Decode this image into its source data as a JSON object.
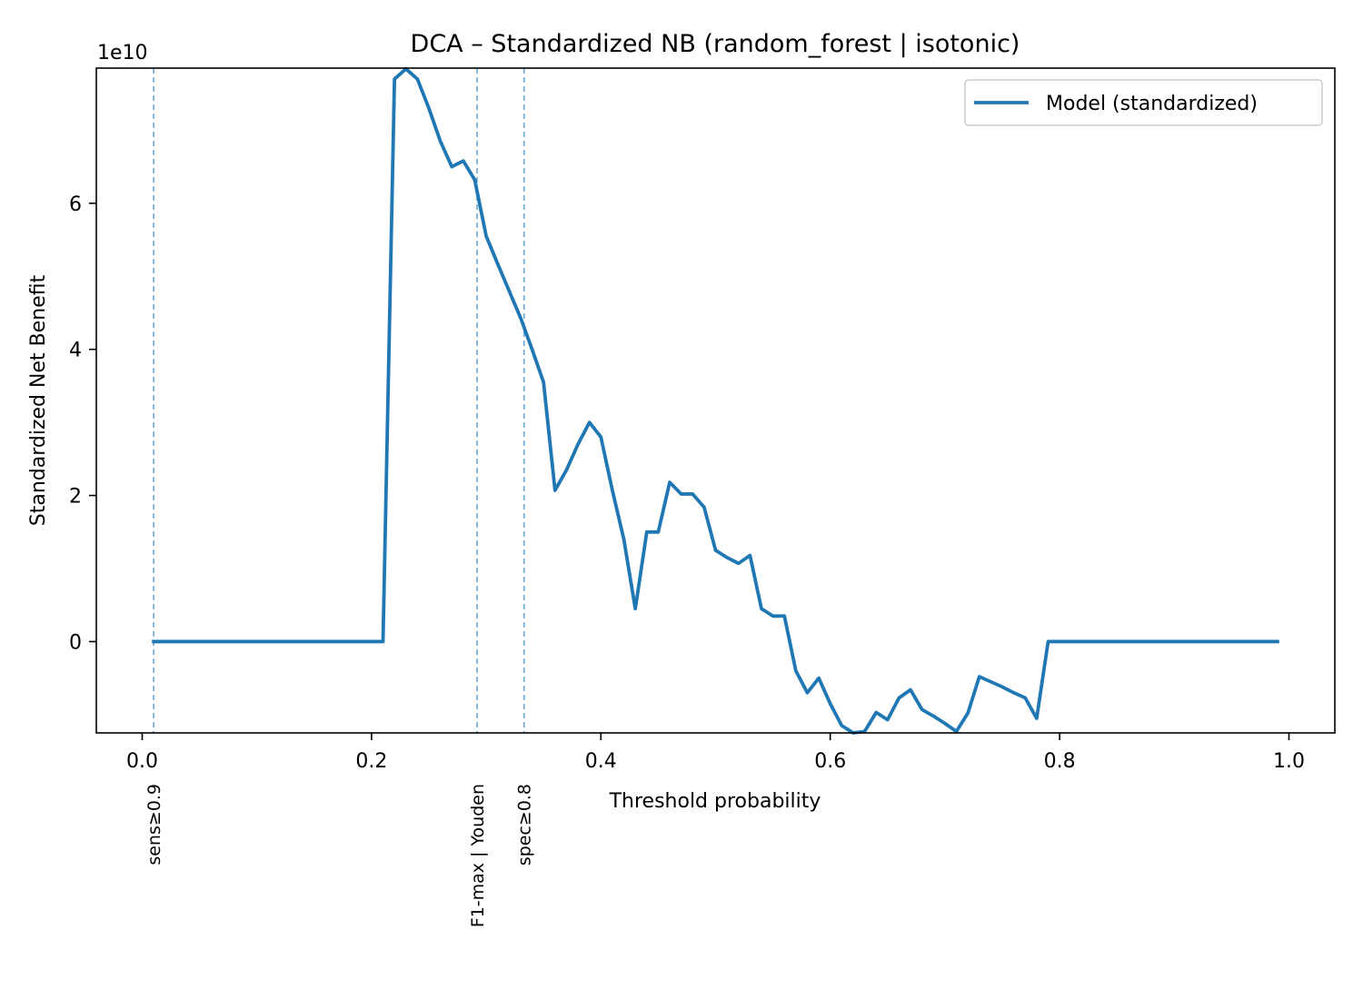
{
  "chart_data": {
    "type": "line",
    "title": "DCA – Standardized NB (random_forest | isotonic)",
    "xlabel": "Threshold probability",
    "ylabel": "Standardized Net Benefit",
    "y_offset_label": "1e10",
    "y_scale": 10000000000,
    "xlim": [
      -0.04,
      1.04
    ],
    "ylim": [
      -1.25,
      7.85
    ],
    "x_ticks": [
      0.0,
      0.2,
      0.4,
      0.6,
      0.8,
      1.0
    ],
    "x_tick_labels": [
      "0.0",
      "0.2",
      "0.4",
      "0.6",
      "0.8",
      "1.0"
    ],
    "y_ticks": [
      0,
      2,
      4,
      6
    ],
    "y_tick_labels": [
      "0",
      "2",
      "4",
      "6"
    ],
    "grid": false,
    "legend": "upper-right",
    "series": [
      {
        "name": "Model (standardized)",
        "color": "#1f77b4",
        "x": [
          0.01,
          0.21,
          0.22,
          0.23,
          0.24,
          0.25,
          0.26,
          0.27,
          0.28,
          0.29,
          0.3,
          0.31,
          0.32,
          0.33,
          0.34,
          0.35,
          0.36,
          0.37,
          0.38,
          0.39,
          0.4,
          0.41,
          0.42,
          0.43,
          0.44,
          0.45,
          0.46,
          0.47,
          0.48,
          0.49,
          0.5,
          0.51,
          0.52,
          0.53,
          0.54,
          0.55,
          0.56,
          0.57,
          0.58,
          0.59,
          0.6,
          0.61,
          0.62,
          0.63,
          0.64,
          0.65,
          0.66,
          0.67,
          0.68,
          0.69,
          0.7,
          0.71,
          0.72,
          0.73,
          0.74,
          0.75,
          0.76,
          0.77,
          0.78,
          0.79,
          0.99
        ],
        "values": [
          0,
          0,
          7.7,
          7.84,
          7.7,
          7.3,
          6.85,
          6.5,
          6.58,
          6.32,
          5.55,
          5.17,
          4.8,
          4.43,
          4.0,
          3.55,
          2.07,
          2.35,
          2.7,
          3.0,
          2.8,
          2.07,
          1.4,
          0.45,
          1.5,
          1.5,
          2.18,
          2.02,
          2.02,
          1.84,
          1.25,
          1.15,
          1.07,
          1.18,
          0.45,
          0.35,
          0.35,
          -0.4,
          -0.7,
          -0.5,
          -0.85,
          -1.15,
          -1.25,
          -1.23,
          -0.97,
          -1.07,
          -0.77,
          -0.66,
          -0.93,
          -1.02,
          -1.12,
          -1.23,
          -0.98,
          -0.48,
          -0.55,
          -0.62,
          -0.7,
          -0.77,
          -1.05,
          0,
          0
        ]
      }
    ],
    "vlines": [
      {
        "x": 0.01,
        "label": "sens≥0.9",
        "color": "#1f77b4"
      },
      {
        "x": 0.292,
        "label": "F1-max | Youden",
        "color": "#1f77b4"
      },
      {
        "x": 0.333,
        "label": "spec≥0.8",
        "color": "#1f77b4"
      }
    ]
  }
}
